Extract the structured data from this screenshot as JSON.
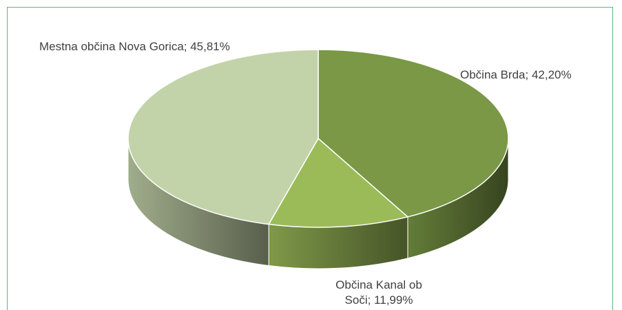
{
  "chart_data": {
    "type": "pie",
    "values": [
      42.2,
      11.99,
      45.81
    ],
    "value_labels": [
      "Občina Brda; 42,20%",
      "Občina Kanal ob Soči; 11,99%",
      "Mestna občina Nova Gorica; 45,81%"
    ],
    "colors": [
      "#7a9845",
      "#9bbb59",
      "#c3d3a9"
    ],
    "start_angle": -90,
    "three_d": true
  }
}
